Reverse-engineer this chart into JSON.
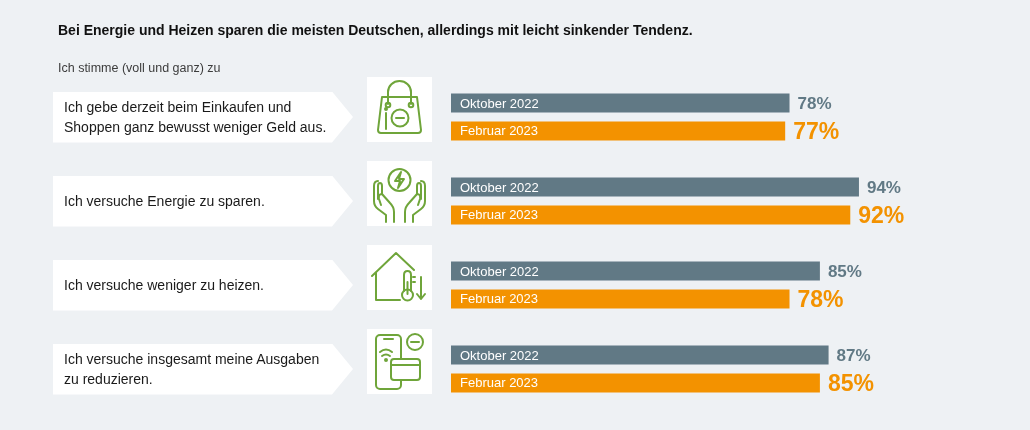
{
  "chart_data": {
    "type": "bar",
    "orientation": "horizontal",
    "title": "Bei Energie und Heizen sparen die meisten Deutschen, allerdings mit leicht sinkender Tendenz.",
    "subtitle": "Ich stimme (voll und ganz) zu",
    "categories": [
      "Ich gebe derzeit beim Einkaufen und Shoppen ganz bewusst weniger Geld aus.",
      "Ich versuche Energie zu sparen.",
      "Ich versuche weniger zu heizen.",
      "Ich versuche insgesamt meine Ausgaben zu reduzieren."
    ],
    "series": [
      {
        "name": "Oktober 2022",
        "color": "#617985",
        "values": [
          78,
          94,
          85,
          87
        ],
        "value_labels": [
          "78%",
          "94%",
          "85%",
          "87%"
        ]
      },
      {
        "name": "Februar 2023",
        "color": "#f39200",
        "values": [
          77,
          92,
          78,
          85
        ],
        "value_labels": [
          "77%",
          "92%",
          "78%",
          "85%"
        ]
      }
    ],
    "tick_labels": "y"
  }
}
